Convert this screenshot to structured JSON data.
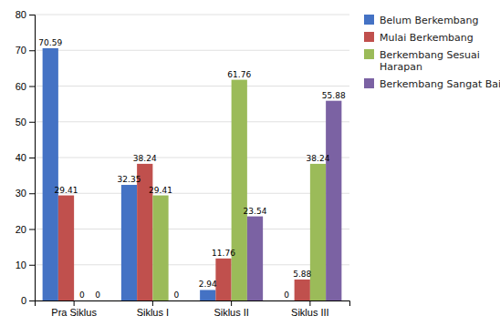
{
  "chart_data": {
    "type": "bar",
    "categories": [
      "Pra Siklus",
      "Siklus I",
      "Siklus II",
      "Siklus III"
    ],
    "series": [
      {
        "name": "Belum Berkembang",
        "color": "#4472C4",
        "values": [
          70.59,
          32.35,
          2.94,
          0
        ]
      },
      {
        "name": "Mulai Berkembang",
        "color": "#C0504D",
        "values": [
          29.41,
          38.24,
          11.76,
          5.88
        ]
      },
      {
        "name": "Berkembang Sesuai\nHarapan",
        "color": "#9BBB59",
        "values": [
          0,
          29.41,
          61.76,
          38.24
        ]
      },
      {
        "name": "Berkembang Sangat Baik",
        "color": "#7B62A3",
        "values": [
          0,
          0,
          23.54,
          55.88
        ]
      }
    ],
    "ylim": [
      0,
      80
    ],
    "yticks": [
      0,
      10,
      20,
      30,
      40,
      50,
      60,
      70,
      80
    ],
    "grid": true,
    "legend": "upper right",
    "data_labels": true
  }
}
